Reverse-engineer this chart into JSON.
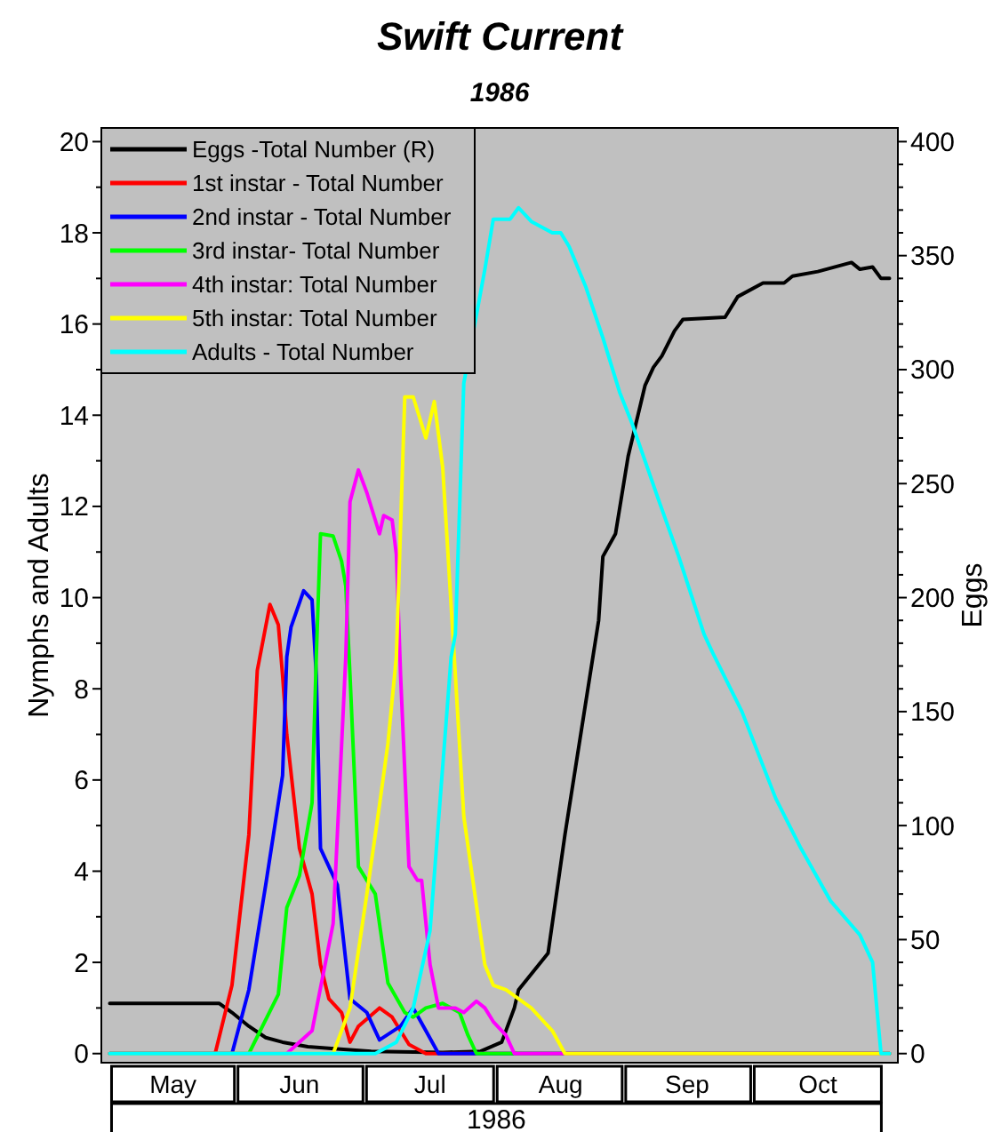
{
  "chart_data": {
    "type": "line",
    "title": "Swift Current",
    "subtitle": "1986",
    "xlabel": "1986",
    "ylabel": "Nymphs and Adults",
    "y2label": "Eggs",
    "legend": "top left",
    "xlim": [
      "1986-04-29",
      "1986-11-04"
    ],
    "xticks": [
      {
        "value": "1986-05-16",
        "label": "May"
      },
      {
        "value": "1986-06-15",
        "label": "Jun"
      },
      {
        "value": "1986-07-16",
        "label": "Jul"
      },
      {
        "value": "1986-08-16",
        "label": "Aug"
      },
      {
        "value": "1986-09-15",
        "label": "Sep"
      },
      {
        "value": "1986-10-16",
        "label": "Oct"
      }
    ],
    "ylim": [
      -0.2,
      20.3
    ],
    "yticks": [
      0,
      {
        "value": 1,
        "label": null
      },
      2,
      {
        "value": 3,
        "label": null
      },
      4,
      {
        "value": 5,
        "label": null
      },
      6,
      {
        "value": 7,
        "label": null
      },
      8,
      {
        "value": 9,
        "label": null
      },
      10,
      {
        "value": 11,
        "label": null
      },
      12,
      {
        "value": 13,
        "label": null
      },
      14,
      {
        "value": 15,
        "label": null
      },
      16,
      {
        "value": 17,
        "label": null
      },
      18,
      {
        "value": 19,
        "label": null
      },
      20
    ],
    "y2lim": [
      -4,
      406
    ],
    "y2ticks": [
      0,
      {
        "value": 10,
        "label": null
      },
      {
        "value": 20,
        "label": null
      },
      {
        "value": 30,
        "label": null
      },
      {
        "value": 40,
        "label": null
      },
      50,
      {
        "value": 60,
        "label": null
      },
      {
        "value": 70,
        "label": null
      },
      {
        "value": 80,
        "label": null
      },
      {
        "value": 90,
        "label": null
      },
      100,
      {
        "value": 110,
        "label": null
      },
      {
        "value": 120,
        "label": null
      },
      {
        "value": 130,
        "label": null
      },
      {
        "value": 140,
        "label": null
      },
      150,
      {
        "value": 160,
        "label": null
      },
      {
        "value": 170,
        "label": null
      },
      {
        "value": 180,
        "label": null
      },
      {
        "value": 190,
        "label": null
      },
      200,
      {
        "value": 210,
        "label": null
      },
      {
        "value": 220,
        "label": null
      },
      {
        "value": 230,
        "label": null
      },
      {
        "value": 240,
        "label": null
      },
      250,
      {
        "value": 260,
        "label": null
      },
      {
        "value": 270,
        "label": null
      },
      {
        "value": 280,
        "label": null
      },
      {
        "value": 290,
        "label": null
      },
      300,
      {
        "value": 310,
        "label": null
      },
      {
        "value": 320,
        "label": null
      },
      {
        "value": 330,
        "label": null
      },
      {
        "value": 340,
        "label": null
      },
      350,
      {
        "value": 360,
        "label": null
      },
      {
        "value": 370,
        "label": null
      },
      {
        "value": 380,
        "label": null
      },
      {
        "value": 390,
        "label": null
      },
      400
    ],
    "series": [
      {
        "name": "Eggs -Total Number (R)",
        "color": "#000000",
        "axis": "y2",
        "x": [
          "1986-05-01",
          "1986-05-27",
          "1986-05-30",
          "1986-06-03",
          "1986-06-07",
          "1986-06-11",
          "1986-06-17",
          "1986-06-24",
          "1986-07-02",
          "1986-07-19",
          "1986-07-28",
          "1986-08-02",
          "1986-08-05",
          "1986-08-06",
          "1986-08-13",
          "1986-08-17",
          "1986-08-21",
          "1986-08-25",
          "1986-08-26",
          "1986-08-29",
          "1986-09-01",
          "1986-09-05",
          "1986-09-07",
          "1986-09-09",
          "1986-09-12",
          "1986-09-14",
          "1986-09-24",
          "1986-09-27",
          "1986-10-03",
          "1986-10-08",
          "1986-10-10",
          "1986-10-16",
          "1986-10-24",
          "1986-10-26",
          "1986-10-29",
          "1986-10-31",
          "1986-11-02"
        ],
        "values": [
          22,
          22,
          18,
          12,
          7,
          5,
          3,
          2,
          1,
          0.5,
          1,
          5,
          20,
          28,
          44,
          96,
          143,
          190,
          218,
          228,
          262,
          293,
          301,
          306,
          317,
          322,
          323,
          332,
          338,
          338,
          341,
          343,
          347,
          344,
          345,
          340,
          340
        ]
      },
      {
        "name": "1st instar - Total Number",
        "color": "#ff0000",
        "x": [
          "1986-05-01",
          "1986-05-26",
          "1986-05-30",
          "1986-06-03",
          "1986-06-05",
          "1986-06-08",
          "1986-06-10",
          "1986-06-11",
          "1986-06-12",
          "1986-06-15",
          "1986-06-18",
          "1986-06-20",
          "1986-06-22",
          "1986-06-25",
          "1986-06-27",
          "1986-06-29",
          "1986-07-04",
          "1986-07-07",
          "1986-07-11",
          "1986-07-15",
          "1986-11-02"
        ],
        "values": [
          0,
          0,
          1.5,
          4.8,
          8.4,
          9.85,
          9.4,
          8.3,
          7,
          4.5,
          3.5,
          1.95,
          1.2,
          0.9,
          0.25,
          0.6,
          1,
          0.8,
          0.2,
          0,
          0
        ]
      },
      {
        "name": "2nd instar - Total Number",
        "color": "#0000ff",
        "x": [
          "1986-05-01",
          "1986-05-30",
          "1986-06-03",
          "1986-06-07",
          "1986-06-11",
          "1986-06-12",
          "1986-06-13",
          "1986-06-16",
          "1986-06-18",
          "1986-06-19",
          "1986-06-20",
          "1986-06-24",
          "1986-06-27",
          "1986-07-01",
          "1986-07-04",
          "1986-07-09",
          "1986-07-12",
          "1986-07-15",
          "1986-07-18",
          "1986-11-02"
        ],
        "values": [
          0,
          0,
          1.4,
          3.7,
          6.1,
          8.7,
          9.35,
          10.15,
          9.95,
          8.3,
          4.5,
          3.7,
          1.2,
          0.9,
          0.3,
          0.6,
          1,
          0.5,
          0,
          0
        ]
      },
      {
        "name": "3rd instar- Total Number",
        "color": "#00ff00",
        "x": [
          "1986-05-01",
          "1986-06-03",
          "1986-06-10",
          "1986-06-12",
          "1986-06-15",
          "1986-06-18",
          "1986-06-19",
          "1986-06-20",
          "1986-06-23",
          "1986-06-25",
          "1986-06-26",
          "1986-06-27",
          "1986-06-29",
          "1986-07-03",
          "1986-07-06",
          "1986-07-10",
          "1986-07-12",
          "1986-07-15",
          "1986-07-19",
          "1986-07-23",
          "1986-07-25",
          "1986-07-27",
          "1986-11-02"
        ],
        "values": [
          0,
          0,
          1.3,
          3.2,
          3.9,
          5.5,
          8.7,
          11.4,
          11.35,
          10.8,
          10.25,
          8.3,
          4.1,
          3.5,
          1.55,
          0.9,
          0.8,
          1,
          1.1,
          0.9,
          0.4,
          0,
          0
        ]
      },
      {
        "name": "4th instar: Total Number",
        "color": "#ff00ff",
        "x": [
          "1986-05-01",
          "1986-06-12",
          "1986-06-18",
          "1986-06-23",
          "1986-06-26",
          "1986-06-27",
          "1986-06-29",
          "1986-07-01",
          "1986-07-04",
          "1986-07-05",
          "1986-07-07",
          "1986-07-08",
          "1986-07-09",
          "1986-07-11",
          "1986-07-13",
          "1986-07-14",
          "1986-07-16",
          "1986-07-18",
          "1986-07-22",
          "1986-07-24",
          "1986-07-27",
          "1986-07-29",
          "1986-07-31",
          "1986-08-03",
          "1986-08-05",
          "1986-11-02"
        ],
        "values": [
          0,
          0,
          0.5,
          2.85,
          8.7,
          12.1,
          12.8,
          12.3,
          11.4,
          11.8,
          11.7,
          10.95,
          8.3,
          4.1,
          3.8,
          3.8,
          1.95,
          1,
          1,
          0.9,
          1.15,
          1,
          0.7,
          0.4,
          0,
          0
        ]
      },
      {
        "name": "5th instar: Total Number",
        "color": "#ffff00",
        "x": [
          "1986-05-01",
          "1986-06-23",
          "1986-06-27",
          "1986-07-01",
          "1986-07-04",
          "1986-07-06",
          "1986-07-08",
          "1986-07-10",
          "1986-07-12",
          "1986-07-15",
          "1986-07-17",
          "1986-07-19",
          "1986-07-22",
          "1986-07-24",
          "1986-07-29",
          "1986-07-31",
          "1986-08-03",
          "1986-08-06",
          "1986-08-09",
          "1986-08-14",
          "1986-08-17",
          "1986-11-02"
        ],
        "values": [
          0,
          0,
          1,
          3.5,
          5.45,
          6.8,
          8.7,
          14.4,
          14.4,
          13.5,
          14.3,
          12.85,
          8.3,
          5.2,
          1.95,
          1.5,
          1.4,
          1.2,
          1,
          0.5,
          0,
          0
        ]
      },
      {
        "name": "Adults - Total Number",
        "color": "#00ffff",
        "x": [
          "1986-05-01",
          "1986-07-03",
          "1986-07-08",
          "1986-07-12",
          "1986-07-16",
          "1986-07-21",
          "1986-07-22",
          "1986-07-24",
          "1986-07-29",
          "1986-07-31",
          "1986-08-04",
          "1986-08-06",
          "1986-08-09",
          "1986-08-14",
          "1986-08-16",
          "1986-08-18",
          "1986-08-22",
          "1986-08-26",
          "1986-08-30",
          "1986-09-02",
          "1986-09-08",
          "1986-09-13",
          "1986-09-19",
          "1986-09-21",
          "1986-09-28",
          "1986-10-06",
          "1986-10-12",
          "1986-10-19",
          "1986-10-26",
          "1986-10-29",
          "1986-10-31",
          "1986-11-02"
        ],
        "values": [
          0,
          0,
          0.25,
          1,
          2.7,
          8.7,
          9.2,
          14.7,
          17.2,
          18.3,
          18.3,
          18.55,
          18.25,
          18,
          18,
          17.7,
          16.8,
          15.7,
          14.5,
          13.8,
          12.2,
          10.9,
          9.2,
          8.8,
          7.5,
          5.6,
          4.5,
          3.35,
          2.6,
          2,
          0,
          0
        ]
      }
    ]
  }
}
